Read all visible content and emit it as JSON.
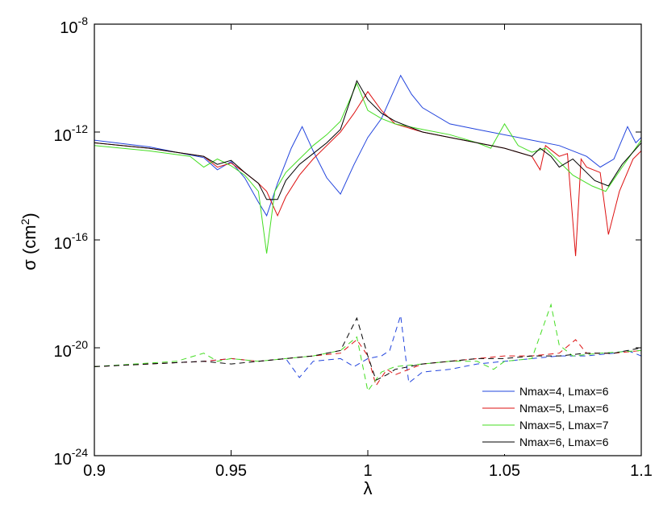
{
  "chart_data": {
    "type": "line",
    "title": "",
    "xlabel": "λ",
    "ylabel_main": "σ (cm",
    "ylabel_sup": "2",
    "ylabel_end": ")",
    "xlim": [
      0.9,
      1.1
    ],
    "ylim": [
      -24,
      -8
    ],
    "y_scale": "log",
    "x_ticks": [
      {
        "value": 0.9,
        "label": "0.9"
      },
      {
        "value": 0.95,
        "label": "0.95"
      },
      {
        "value": 1.0,
        "label": "1"
      },
      {
        "value": 1.05,
        "label": "1.05"
      },
      {
        "value": 1.1,
        "label": "1.1"
      }
    ],
    "y_ticks": [
      {
        "exp": -24,
        "base": "10",
        "sup": "-24"
      },
      {
        "exp": -20,
        "base": "10",
        "sup": "-20"
      },
      {
        "exp": -16,
        "base": "10",
        "sup": "-16"
      },
      {
        "exp": -12,
        "base": "10",
        "sup": "-12"
      },
      {
        "exp": -8,
        "base": "10",
        "sup": "-8"
      }
    ],
    "grid": false,
    "legend_position": "bottom-right",
    "series": [
      {
        "name": "Nmax=4, Lmax=6",
        "color": "#2244dd",
        "style": "solid",
        "points": [
          [
            0.9,
            -12.3
          ],
          [
            0.92,
            -12.55
          ],
          [
            0.94,
            -12.95
          ],
          [
            0.945,
            -13.4
          ],
          [
            0.95,
            -13.1
          ],
          [
            0.955,
            -13.7
          ],
          [
            0.96,
            -14.6
          ],
          [
            0.963,
            -15.1
          ],
          [
            0.967,
            -13.9
          ],
          [
            0.972,
            -12.6
          ],
          [
            0.976,
            -11.8
          ],
          [
            0.98,
            -12.7
          ],
          [
            0.985,
            -13.7
          ],
          [
            0.99,
            -14.3
          ],
          [
            0.995,
            -13.2
          ],
          [
            1.0,
            -12.2
          ],
          [
            1.005,
            -11.5
          ],
          [
            1.012,
            -9.9
          ],
          [
            1.016,
            -10.6
          ],
          [
            1.02,
            -11.1
          ],
          [
            1.03,
            -11.7
          ],
          [
            1.04,
            -11.9
          ],
          [
            1.06,
            -12.3
          ],
          [
            1.07,
            -12.5
          ],
          [
            1.08,
            -12.9
          ],
          [
            1.085,
            -13.3
          ],
          [
            1.09,
            -13.0
          ],
          [
            1.095,
            -11.8
          ],
          [
            1.098,
            -12.4
          ],
          [
            1.1,
            -12.2
          ]
        ]
      },
      {
        "name": "Nmax=5, Lmax=6",
        "color": "#dd1111",
        "style": "solid",
        "points": [
          [
            0.9,
            -12.4
          ],
          [
            0.92,
            -12.6
          ],
          [
            0.94,
            -12.9
          ],
          [
            0.945,
            -13.3
          ],
          [
            0.95,
            -13.15
          ],
          [
            0.955,
            -13.5
          ],
          [
            0.96,
            -13.9
          ],
          [
            0.963,
            -14.2
          ],
          [
            0.967,
            -15.1
          ],
          [
            0.97,
            -14.4
          ],
          [
            0.975,
            -13.6
          ],
          [
            0.98,
            -13.0
          ],
          [
            0.985,
            -12.5
          ],
          [
            0.99,
            -12.0
          ],
          [
            0.995,
            -11.3
          ],
          [
            1.0,
            -10.5
          ],
          [
            1.005,
            -11.2
          ],
          [
            1.01,
            -11.7
          ],
          [
            1.02,
            -12.0
          ],
          [
            1.03,
            -12.2
          ],
          [
            1.04,
            -12.4
          ],
          [
            1.05,
            -12.6
          ],
          [
            1.06,
            -12.9
          ],
          [
            1.063,
            -13.4
          ],
          [
            1.065,
            -12.5
          ],
          [
            1.07,
            -12.9
          ],
          [
            1.073,
            -12.8
          ],
          [
            1.076,
            -16.6
          ],
          [
            1.078,
            -13.0
          ],
          [
            1.08,
            -13.3
          ],
          [
            1.085,
            -13.5
          ],
          [
            1.088,
            -15.8
          ],
          [
            1.092,
            -14.2
          ],
          [
            1.097,
            -13.0
          ],
          [
            1.1,
            -12.7
          ]
        ]
      },
      {
        "name": "Nmax=5, Lmax=7",
        "color": "#44dd22",
        "style": "solid",
        "points": [
          [
            0.9,
            -12.5
          ],
          [
            0.92,
            -12.7
          ],
          [
            0.935,
            -12.9
          ],
          [
            0.94,
            -13.3
          ],
          [
            0.945,
            -13.0
          ],
          [
            0.95,
            -13.25
          ],
          [
            0.955,
            -13.6
          ],
          [
            0.96,
            -14.2
          ],
          [
            0.963,
            -16.5
          ],
          [
            0.966,
            -14.2
          ],
          [
            0.97,
            -13.5
          ],
          [
            0.975,
            -13.0
          ],
          [
            0.98,
            -12.5
          ],
          [
            0.985,
            -12.1
          ],
          [
            0.99,
            -11.6
          ],
          [
            0.996,
            -10.2
          ],
          [
            1.0,
            -11.2
          ],
          [
            1.005,
            -11.5
          ],
          [
            1.01,
            -11.7
          ],
          [
            1.02,
            -11.9
          ],
          [
            1.03,
            -12.1
          ],
          [
            1.04,
            -12.4
          ],
          [
            1.045,
            -12.6
          ],
          [
            1.05,
            -11.7
          ],
          [
            1.055,
            -12.5
          ],
          [
            1.06,
            -12.75
          ],
          [
            1.065,
            -12.6
          ],
          [
            1.07,
            -13.1
          ],
          [
            1.075,
            -13.6
          ],
          [
            1.082,
            -14.0
          ],
          [
            1.087,
            -14.2
          ],
          [
            1.093,
            -13.3
          ],
          [
            1.1,
            -12.3
          ]
        ]
      },
      {
        "name": "Nmax=6, Lmax=6",
        "color": "#000000",
        "style": "solid",
        "points": [
          [
            0.9,
            -12.4
          ],
          [
            0.92,
            -12.6
          ],
          [
            0.94,
            -12.9
          ],
          [
            0.945,
            -13.2
          ],
          [
            0.95,
            -13.05
          ],
          [
            0.955,
            -13.5
          ],
          [
            0.96,
            -13.9
          ],
          [
            0.963,
            -14.5
          ],
          [
            0.967,
            -14.5
          ],
          [
            0.97,
            -13.8
          ],
          [
            0.975,
            -13.2
          ],
          [
            0.98,
            -12.8
          ],
          [
            0.985,
            -12.4
          ],
          [
            0.99,
            -11.9
          ],
          [
            0.996,
            -10.1
          ],
          [
            1.0,
            -10.8
          ],
          [
            1.005,
            -11.3
          ],
          [
            1.01,
            -11.6
          ],
          [
            1.02,
            -12.0
          ],
          [
            1.03,
            -12.2
          ],
          [
            1.04,
            -12.4
          ],
          [
            1.05,
            -12.6
          ],
          [
            1.06,
            -12.9
          ],
          [
            1.063,
            -12.6
          ],
          [
            1.067,
            -12.9
          ],
          [
            1.07,
            -13.3
          ],
          [
            1.075,
            -13.0
          ],
          [
            1.08,
            -13.5
          ],
          [
            1.083,
            -13.8
          ],
          [
            1.088,
            -14.0
          ],
          [
            1.093,
            -13.2
          ],
          [
            1.1,
            -12.4
          ]
        ]
      },
      {
        "name": "",
        "color": "#2244dd",
        "style": "dashed",
        "points": [
          [
            0.9,
            -20.7
          ],
          [
            0.94,
            -20.5
          ],
          [
            0.95,
            -20.4
          ],
          [
            0.96,
            -20.5
          ],
          [
            0.97,
            -20.4
          ],
          [
            0.975,
            -21.1
          ],
          [
            0.98,
            -20.5
          ],
          [
            0.99,
            -20.4
          ],
          [
            0.995,
            -20.7
          ],
          [
            1.0,
            -20.4
          ],
          [
            1.005,
            -20.3
          ],
          [
            1.008,
            -20.1
          ],
          [
            1.012,
            -18.8
          ],
          [
            1.015,
            -21.3
          ],
          [
            1.02,
            -20.9
          ],
          [
            1.03,
            -20.8
          ],
          [
            1.04,
            -20.6
          ],
          [
            1.05,
            -20.5
          ],
          [
            1.06,
            -20.4
          ],
          [
            1.07,
            -20.3
          ],
          [
            1.08,
            -20.3
          ],
          [
            1.09,
            -20.2
          ],
          [
            1.095,
            -20.1
          ],
          [
            1.1,
            -20.3
          ]
        ]
      },
      {
        "name": "",
        "color": "#dd1111",
        "style": "dashed",
        "points": [
          [
            0.9,
            -20.7
          ],
          [
            0.94,
            -20.5
          ],
          [
            0.95,
            -20.4
          ],
          [
            0.96,
            -20.5
          ],
          [
            0.97,
            -20.4
          ],
          [
            0.98,
            -20.3
          ],
          [
            0.99,
            -20.2
          ],
          [
            0.996,
            -19.7
          ],
          [
            1.0,
            -20.3
          ],
          [
            1.003,
            -21.4
          ],
          [
            1.007,
            -20.8
          ],
          [
            1.01,
            -21.0
          ],
          [
            1.02,
            -20.6
          ],
          [
            1.03,
            -20.5
          ],
          [
            1.04,
            -20.4
          ],
          [
            1.05,
            -20.3
          ],
          [
            1.06,
            -20.3
          ],
          [
            1.07,
            -20.2
          ],
          [
            1.076,
            -19.7
          ],
          [
            1.08,
            -20.2
          ],
          [
            1.09,
            -20.2
          ],
          [
            1.1,
            -20.1
          ]
        ]
      },
      {
        "name": "",
        "color": "#44dd22",
        "style": "dashed",
        "points": [
          [
            0.9,
            -20.7
          ],
          [
            0.93,
            -20.5
          ],
          [
            0.94,
            -20.2
          ],
          [
            0.945,
            -20.5
          ],
          [
            0.95,
            -20.4
          ],
          [
            0.96,
            -20.5
          ],
          [
            0.97,
            -20.4
          ],
          [
            0.98,
            -20.3
          ],
          [
            0.99,
            -20.1
          ],
          [
            0.996,
            -19.6
          ],
          [
            1.0,
            -21.6
          ],
          [
            1.005,
            -20.9
          ],
          [
            1.01,
            -20.7
          ],
          [
            1.02,
            -20.6
          ],
          [
            1.03,
            -20.5
          ],
          [
            1.04,
            -20.5
          ],
          [
            1.046,
            -20.8
          ],
          [
            1.05,
            -20.5
          ],
          [
            1.06,
            -20.4
          ],
          [
            1.067,
            -18.4
          ],
          [
            1.07,
            -19.9
          ],
          [
            1.075,
            -20.3
          ],
          [
            1.085,
            -20.2
          ],
          [
            1.1,
            -20.1
          ]
        ]
      },
      {
        "name": "",
        "color": "#000000",
        "style": "dashed",
        "points": [
          [
            0.9,
            -20.7
          ],
          [
            0.94,
            -20.5
          ],
          [
            0.95,
            -20.6
          ],
          [
            0.96,
            -20.5
          ],
          [
            0.97,
            -20.4
          ],
          [
            0.98,
            -20.3
          ],
          [
            0.99,
            -20.1
          ],
          [
            0.996,
            -18.9
          ],
          [
            1.0,
            -20.3
          ],
          [
            1.003,
            -21.2
          ],
          [
            1.007,
            -21.0
          ],
          [
            1.01,
            -20.8
          ],
          [
            1.02,
            -20.6
          ],
          [
            1.03,
            -20.5
          ],
          [
            1.04,
            -20.4
          ],
          [
            1.05,
            -20.4
          ],
          [
            1.06,
            -20.3
          ],
          [
            1.07,
            -20.3
          ],
          [
            1.08,
            -20.2
          ],
          [
            1.09,
            -20.2
          ],
          [
            1.1,
            -20.0
          ]
        ]
      }
    ]
  }
}
